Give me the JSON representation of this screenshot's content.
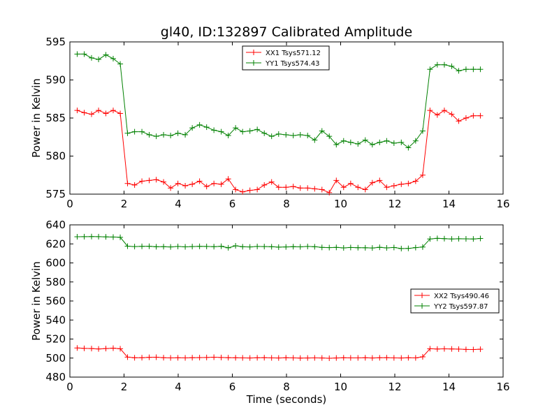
{
  "chart_data": [
    {
      "type": "line",
      "title": "gl40, ID:132897 Calibrated Amplitude",
      "xlabel": "",
      "ylabel": "Power in Kelvin",
      "xlim": [
        0,
        16
      ],
      "ylim": [
        575,
        595
      ],
      "xticks": [
        0,
        2,
        4,
        6,
        8,
        10,
        12,
        14,
        16
      ],
      "yticks": [
        575,
        580,
        585,
        590,
        595
      ],
      "grid": false,
      "legend_position": "top-center",
      "x": [
        0.27,
        0.53,
        0.8,
        1.06,
        1.33,
        1.6,
        1.86,
        2.13,
        2.39,
        2.66,
        2.93,
        3.19,
        3.46,
        3.72,
        3.99,
        4.26,
        4.52,
        4.79,
        5.05,
        5.32,
        5.59,
        5.85,
        6.12,
        6.38,
        6.65,
        6.92,
        7.18,
        7.45,
        7.71,
        7.98,
        8.25,
        8.51,
        8.78,
        9.04,
        9.31,
        9.58,
        9.84,
        10.11,
        10.37,
        10.64,
        10.91,
        11.17,
        11.44,
        11.7,
        11.97,
        12.24,
        12.5,
        12.77,
        13.03,
        13.3,
        13.57,
        13.83,
        14.1,
        14.36,
        14.63,
        14.9,
        15.16
      ],
      "series": [
        {
          "name": "XX1 Tsys571.12",
          "color": "#ff0000",
          "values": [
            586.0,
            585.7,
            585.5,
            586.0,
            585.6,
            586.0,
            585.6,
            576.4,
            576.2,
            576.7,
            576.8,
            576.9,
            576.6,
            575.8,
            576.4,
            576.1,
            576.3,
            576.7,
            576.0,
            576.4,
            576.3,
            577.0,
            575.6,
            575.3,
            575.5,
            575.6,
            576.2,
            576.6,
            575.9,
            575.9,
            576.0,
            575.8,
            575.8,
            575.7,
            575.6,
            575.2,
            576.8,
            575.9,
            576.4,
            575.9,
            575.6,
            576.5,
            576.8,
            575.9,
            576.1,
            576.3,
            576.4,
            576.7,
            577.5,
            586.0,
            585.4,
            586.0,
            585.5,
            584.6,
            585.0,
            585.3,
            585.3
          ]
        },
        {
          "name": "YY1 Tsys574.43",
          "color": "#008000",
          "values": [
            593.4,
            593.4,
            592.9,
            592.7,
            593.3,
            592.8,
            592.1,
            583.0,
            583.2,
            583.2,
            582.8,
            582.6,
            582.8,
            582.7,
            583.0,
            582.8,
            583.7,
            584.1,
            583.8,
            583.4,
            583.2,
            582.7,
            583.7,
            583.2,
            583.3,
            583.5,
            583.0,
            582.6,
            582.9,
            582.8,
            582.7,
            582.8,
            582.7,
            582.1,
            583.3,
            582.6,
            581.5,
            582.0,
            581.8,
            581.6,
            582.1,
            581.5,
            581.8,
            582.0,
            581.7,
            581.8,
            581.1,
            582.0,
            583.3,
            591.4,
            592.0,
            592.0,
            591.8,
            591.2,
            591.4,
            591.4,
            591.4
          ]
        }
      ]
    },
    {
      "type": "line",
      "title": "",
      "xlabel": "Time (seconds)",
      "ylabel": "Power in Kelvin",
      "xlim": [
        0,
        16
      ],
      "ylim": [
        480,
        640
      ],
      "xticks": [
        0,
        2,
        4,
        6,
        8,
        10,
        12,
        14,
        16
      ],
      "yticks": [
        480,
        500,
        520,
        540,
        560,
        580,
        600,
        620,
        640
      ],
      "grid": false,
      "legend_position": "center-right",
      "x": [
        0.27,
        0.53,
        0.8,
        1.06,
        1.33,
        1.6,
        1.86,
        2.13,
        2.39,
        2.66,
        2.93,
        3.19,
        3.46,
        3.72,
        3.99,
        4.26,
        4.52,
        4.79,
        5.05,
        5.32,
        5.59,
        5.85,
        6.12,
        6.38,
        6.65,
        6.92,
        7.18,
        7.45,
        7.71,
        7.98,
        8.25,
        8.51,
        8.78,
        9.04,
        9.31,
        9.58,
        9.84,
        10.11,
        10.37,
        10.64,
        10.91,
        11.17,
        11.44,
        11.7,
        11.97,
        12.24,
        12.5,
        12.77,
        13.03,
        13.3,
        13.57,
        13.83,
        14.1,
        14.36,
        14.63,
        14.9,
        15.16
      ],
      "series": [
        {
          "name": "XX2 Tsys490.46",
          "color": "#ff0000",
          "values": [
            510.6,
            510.2,
            510.0,
            509.6,
            510.0,
            510.4,
            509.8,
            501.0,
            500.3,
            500.4,
            500.8,
            500.9,
            500.4,
            500.2,
            500.3,
            500.2,
            500.4,
            500.5,
            500.6,
            500.9,
            500.6,
            500.4,
            500.3,
            500.2,
            500.1,
            500.3,
            500.4,
            500.2,
            500.1,
            500.3,
            500.2,
            500.0,
            500.1,
            500.2,
            500.1,
            499.8,
            500.1,
            500.3,
            500.2,
            500.2,
            500.3,
            500.1,
            500.3,
            500.4,
            500.2,
            500.1,
            500.3,
            500.2,
            501.3,
            509.8,
            509.5,
            509.7,
            509.6,
            509.4,
            509.1,
            509.0,
            509.3
          ]
        },
        {
          "name": "YY2 Tsys597.87",
          "color": "#008000",
          "values": [
            627.5,
            627.6,
            627.7,
            627.6,
            627.4,
            627.2,
            626.9,
            617.6,
            617.2,
            617.4,
            617.5,
            617.0,
            617.1,
            616.8,
            617.3,
            616.9,
            617.2,
            617.4,
            617.3,
            617.1,
            617.5,
            615.9,
            618.0,
            617.0,
            616.8,
            617.3,
            617.2,
            617.0,
            616.6,
            616.8,
            617.1,
            616.9,
            617.3,
            617.0,
            616.3,
            616.1,
            616.3,
            615.8,
            616.2,
            616.0,
            615.9,
            615.7,
            616.4,
            615.8,
            616.2,
            615.1,
            615.3,
            616.1,
            616.7,
            625.2,
            625.8,
            625.5,
            625.2,
            625.4,
            625.3,
            625.2,
            625.7
          ]
        }
      ]
    }
  ]
}
